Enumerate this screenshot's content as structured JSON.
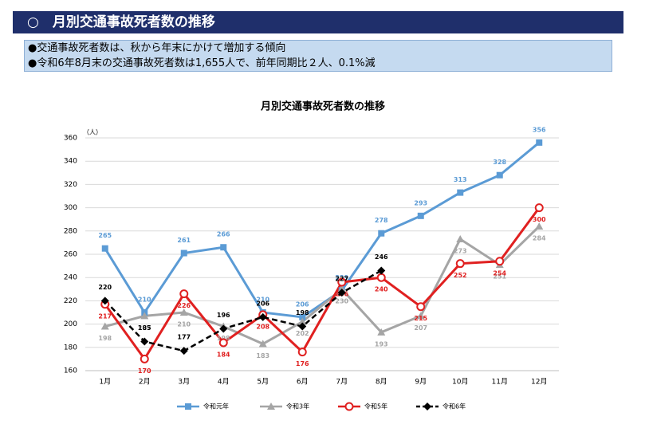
{
  "header": {
    "title": "○　月別交通事故死者数の推移"
  },
  "bullets": [
    "●交通事故死者数は、秋から年末にかけて増加する傾向",
    "●令和6年8月末の交通事故死者数は1,655人で、前年同期比２人、0.1%減"
  ],
  "chart_data": {
    "type": "line",
    "title": "月別交通事故死者数の推移",
    "y_unit": "（人）",
    "categories": [
      "1月",
      "2月",
      "3月",
      "4月",
      "5月",
      "6月",
      "7月",
      "8月",
      "9月",
      "10月",
      "11月",
      "12月"
    ],
    "series": [
      {
        "name": "令和元年",
        "color": "#5b9bd5",
        "marker": "square",
        "values": [
          265,
          210,
          261,
          266,
          210,
          206,
          229,
          278,
          293,
          313,
          328,
          356
        ]
      },
      {
        "name": "令和3年",
        "color": "#a5a5a5",
        "marker": "triangle",
        "values": [
          198,
          207,
          210,
          198,
          183,
          202,
          230,
          193,
          207,
          273,
          251,
          284
        ]
      },
      {
        "name": "令和5年",
        "color": "#e02020",
        "marker": "circle",
        "values": [
          217,
          170,
          226,
          184,
          208,
          176,
          236,
          240,
          215,
          252,
          254,
          300
        ]
      },
      {
        "name": "令和6年",
        "color": "#000000",
        "marker": "diamond",
        "dashed": true,
        "values": [
          220,
          185,
          177,
          196,
          206,
          198,
          227,
          246,
          null,
          null,
          null,
          null
        ]
      }
    ],
    "ylim": [
      160,
      360
    ],
    "yticks": [
      160,
      180,
      200,
      220,
      240,
      260,
      280,
      300,
      320,
      340,
      360
    ],
    "grid": true
  }
}
